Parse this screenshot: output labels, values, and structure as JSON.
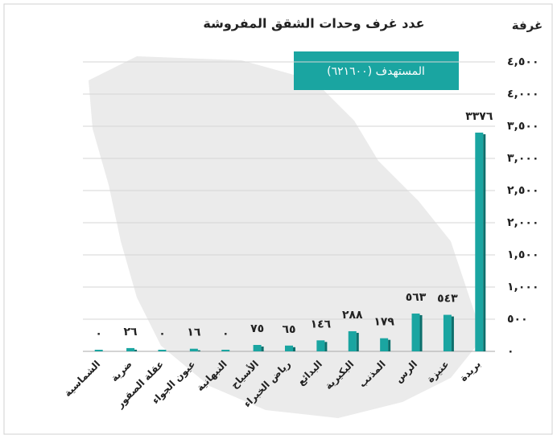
{
  "chart_data": {
    "type": "bar",
    "title": "عدد غرف وحدات الشقق المفروشة",
    "y_axis_label": "غرفة",
    "annotation": "المستهدف (٦٢١٦٠٠)",
    "categories": [
      "الشماسية",
      "ضرية",
      "عقلة الصقور",
      "عيون الجواء",
      "النبهانية",
      "الأسياح",
      "رياض الخبراء",
      "البدائع",
      "البكيرية",
      "المذنب",
      "الرس",
      "عنيزة",
      "بريدة"
    ],
    "values": [
      0,
      26,
      0,
      16,
      0,
      75,
      65,
      146,
      288,
      179,
      563,
      543,
      3376
    ],
    "value_labels": [
      "٠",
      "٢٦",
      "٠",
      "١٦",
      "٠",
      "٧٥",
      "٦٥",
      "١٤٦",
      "٢٨٨",
      "١٧٩",
      "٥٦٣",
      "٥٤٣",
      "٣٣٧٦"
    ],
    "color": "#1aa5a1",
    "ylim": [
      0,
      4500
    ],
    "yticks": [
      {
        "value": 0,
        "label": "٠"
      },
      {
        "value": 500,
        "label": "٥٠٠"
      },
      {
        "value": 1000,
        "label": "١,٠٠٠"
      },
      {
        "value": 1500,
        "label": "١,٥٠٠"
      },
      {
        "value": 2000,
        "label": "٢,٠٠٠"
      },
      {
        "value": 2500,
        "label": "٢,٥٠٠"
      },
      {
        "value": 3000,
        "label": "٣,٠٠٠"
      },
      {
        "value": 3500,
        "label": "٣,٥٠٠"
      },
      {
        "value": 4000,
        "label": "٤,٠٠٠"
      },
      {
        "value": 4500,
        "label": "٤,٥٠٠"
      }
    ],
    "grid": true
  }
}
